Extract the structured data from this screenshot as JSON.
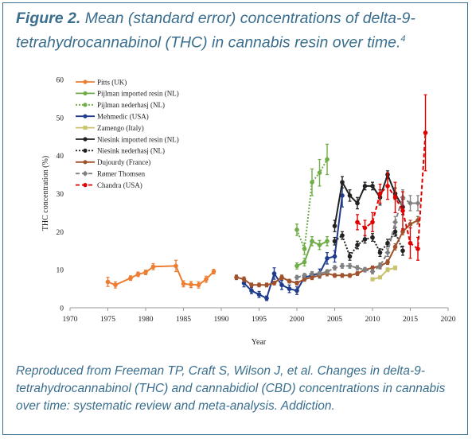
{
  "figure": {
    "label": "Figure 2.",
    "title": "Mean (standard error) concentrations of delta-9-tetrahydrocannabinol (THC) in cannabis resin over time.",
    "ref": "4"
  },
  "caption": "Reproduced from Freeman TP, Craft S, Wilson J, et al. Changes in delta-9-tetrahydrocannabinol (THC) and cannabidiol (CBD) concentrations in cannabis over time: systematic review and meta-analysis. Addiction.",
  "chart_data": {
    "type": "line",
    "title": "",
    "xlabel": "Year",
    "ylabel": "THC concentration (%)",
    "xlim": [
      1970,
      2020
    ],
    "ylim": [
      0,
      60
    ],
    "xticks": [
      1970,
      1975,
      1980,
      1985,
      1990,
      1995,
      2000,
      2005,
      2010,
      2015,
      2020
    ],
    "yticks": [
      0,
      10,
      20,
      30,
      40,
      50,
      60
    ],
    "grid": false,
    "legend_position": "top-left",
    "series": [
      {
        "name": "Pitts (UK)",
        "color": "#ed7d31",
        "dash": "solid",
        "marker": "circle",
        "x": [
          1975,
          1976,
          1978,
          1979,
          1980,
          1981,
          1984,
          1985,
          1986,
          1987,
          1988,
          1989
        ],
        "y": [
          6.8,
          6,
          7.8,
          8.8,
          9.3,
          10.8,
          11,
          6.3,
          6.1,
          6,
          7.5,
          9.5
        ],
        "err": [
          1.2,
          0.8,
          0.6,
          0.6,
          0.6,
          0.8,
          1.5,
          0.8,
          0.8,
          0.8,
          0.8,
          0.6
        ]
      },
      {
        "name": "Pijlman imported resin (NL)",
        "color": "#70ad47",
        "dash": "solid",
        "marker": "circle",
        "x": [
          2000,
          2001,
          2002,
          2003,
          2004
        ],
        "y": [
          11,
          12,
          17.5,
          16.5,
          17.5
        ],
        "err": [
          0.8,
          1,
          1.2,
          1.2,
          1.2
        ]
      },
      {
        "name": "Pijlman nederhasj (NL)",
        "color": "#70ad47",
        "dash": "dot",
        "marker": "circle",
        "x": [
          2000,
          2001,
          2002,
          2003,
          2004
        ],
        "y": [
          20.5,
          15.5,
          33,
          35.5,
          39
        ],
        "err": [
          1.5,
          1.5,
          3.5,
          3.5,
          4
        ]
      },
      {
        "name": "Mehmedic (USA)",
        "color": "#1f3b8c",
        "dash": "solid",
        "marker": "circle",
        "x": [
          1993,
          1994,
          1995,
          1996,
          1997,
          1998,
          1999,
          2000,
          2001,
          2002,
          2003,
          2004,
          2005,
          2006
        ],
        "y": [
          6.5,
          4.5,
          3.5,
          2.5,
          9,
          6,
          5,
          4.5,
          8,
          8.5,
          9,
          13,
          13.5,
          29.5
        ],
        "err": [
          1,
          0.8,
          0.8,
          0.6,
          1.5,
          1.2,
          1,
          1,
          1,
          1,
          1.2,
          1.5,
          1.5,
          3
        ]
      },
      {
        "name": "Zamengo (Italy)",
        "color": "#c9c26e",
        "dash": "solid",
        "marker": "square",
        "x": [
          2010,
          2011,
          2012,
          2013
        ],
        "y": [
          7.5,
          8,
          10,
          10.5
        ],
        "err": [
          0.4,
          0.4,
          0.5,
          0.5
        ]
      },
      {
        "name": "Niesink imported resin (NL)",
        "color": "#222222",
        "dash": "solid",
        "marker": "circle",
        "x": [
          2005,
          2006,
          2007,
          2008,
          2009,
          2010,
          2011,
          2012,
          2013,
          2014
        ],
        "y": [
          21.5,
          33,
          29.5,
          27.5,
          32,
          32,
          29,
          35,
          30,
          26.5
        ],
        "err": [
          1.5,
          1.5,
          1.5,
          1.5,
          1,
          1,
          2,
          1,
          1.5,
          2
        ]
      },
      {
        "name": "Niesink nederhasj (NL)",
        "color": "#222222",
        "dash": "dot",
        "marker": "circle",
        "x": [
          2005,
          2006,
          2007,
          2008,
          2009,
          2010,
          2011,
          2012,
          2013,
          2014
        ],
        "y": [
          17.5,
          19,
          13.5,
          16.5,
          18,
          18.5,
          14.5,
          17,
          20,
          15
        ],
        "err": [
          1,
          1,
          1,
          1,
          1,
          1,
          1,
          1,
          1.2,
          1.2
        ]
      },
      {
        "name": "Dujourdy (France)",
        "color": "#a0522d",
        "dash": "solid",
        "marker": "circle",
        "x": [
          1992,
          1993,
          1994,
          1995,
          1996,
          1997,
          1998,
          1999,
          2000,
          2001,
          2002,
          2003,
          2004,
          2005,
          2006,
          2007,
          2008,
          2009,
          2010,
          2011,
          2012,
          2013,
          2014,
          2015,
          2016
        ],
        "y": [
          8,
          7.5,
          6,
          6,
          6,
          6.5,
          8,
          7,
          6.5,
          7.5,
          8,
          8.5,
          9,
          8.5,
          8.5,
          8.5,
          9,
          10,
          10.5,
          11,
          12,
          16,
          20,
          22,
          23
        ],
        "err": [
          0.6,
          0.6,
          0.5,
          0.5,
          0.5,
          0.5,
          0.6,
          0.5,
          0.5,
          0.5,
          0.6,
          0.6,
          0.6,
          0.5,
          0.5,
          0.5,
          0.5,
          0.5,
          0.5,
          0.6,
          0.6,
          0.8,
          0.8,
          1,
          1
        ]
      },
      {
        "name": "Rømer Thomsen",
        "color": "#808080",
        "dash": "dash",
        "marker": "diamond",
        "x": [
          2000,
          2001,
          2002,
          2003,
          2004,
          2005,
          2006,
          2007,
          2008,
          2009,
          2010,
          2011,
          2012,
          2013,
          2014,
          2015,
          2016
        ],
        "y": [
          8,
          8.5,
          9,
          9,
          9.5,
          10.5,
          11,
          11,
          10.5,
          10,
          9.5,
          11,
          14.5,
          22.5,
          29,
          27.5,
          27.5
        ],
        "err": [
          0.5,
          0.5,
          0.5,
          0.5,
          0.5,
          0.6,
          0.6,
          0.6,
          0.6,
          0.6,
          0.6,
          0.8,
          1,
          1.5,
          2,
          2,
          2
        ]
      },
      {
        "name": "Chandra (USA)",
        "color": "#e00000",
        "dash": "dash",
        "marker": "circle",
        "x": [
          2008,
          2009,
          2010,
          2011,
          2012,
          2013,
          2014,
          2015,
          2016,
          2017
        ],
        "y": [
          22.5,
          21,
          22.5,
          30,
          32,
          29,
          25.5,
          17,
          15.5,
          46
        ],
        "err": [
          2,
          2,
          2.5,
          2.5,
          3.5,
          4,
          5,
          4,
          3,
          10
        ]
      }
    ]
  }
}
